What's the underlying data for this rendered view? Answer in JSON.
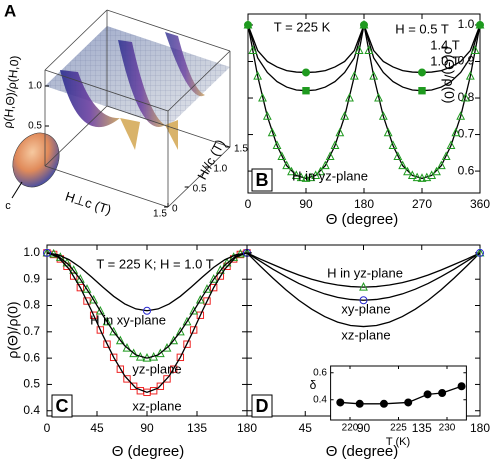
{
  "chart_data": [
    {
      "type": "surface",
      "panel": "A",
      "zlabel": "ρ(H,Θ)/ρ(H,0)",
      "xlabel": "H⊥c (T)",
      "ylabel": "H//c (T)",
      "annotations": [
        "c"
      ],
      "xlim": [
        0,
        1.5
      ],
      "ylim": [
        0,
        1.5
      ],
      "zlim": [
        0,
        1.2
      ],
      "xticks": [
        1.5
      ],
      "yticks": [
        0,
        0.5,
        {
          "value": 1,
          "label": "1.0"
        },
        1.5
      ],
      "zticks": [
        0.5,
        {
          "value": 1,
          "label": "1.0"
        }
      ]
    },
    {
      "type": "line",
      "panel": "B",
      "xlabel": "Θ (degree)",
      "ylabel": "ρ(Θ)/ρ(0)",
      "annotations": [
        "T = 225 K",
        "H in yz-plane"
      ],
      "xlim": [
        0,
        360
      ],
      "ylim": [
        0.54,
        1.03
      ],
      "xticks": [
        0,
        90,
        180,
        270,
        360
      ],
      "yticks": [
        0.6,
        0.7,
        0.8,
        0.9,
        {
          "value": 1,
          "label": "1.0"
        }
      ],
      "series": [
        {
          "color": "#000000",
          "marker": null,
          "x": [
            0,
            15,
            30,
            45,
            60,
            75,
            90,
            105,
            120,
            135,
            150,
            165,
            180,
            195,
            210,
            225,
            240,
            255,
            270,
            285,
            300,
            315,
            330,
            345,
            360
          ],
          "values": [
            1.0,
            0.93,
            0.9,
            0.885,
            0.875,
            0.871,
            0.87,
            0.871,
            0.875,
            0.885,
            0.9,
            0.93,
            1.0,
            0.93,
            0.9,
            0.885,
            0.875,
            0.871,
            0.87,
            0.871,
            0.875,
            0.885,
            0.9,
            0.93,
            1.0
          ]
        },
        {
          "color": "#000000",
          "marker": null,
          "x": [
            0,
            15,
            30,
            45,
            60,
            75,
            90,
            105,
            120,
            135,
            150,
            165,
            180,
            195,
            210,
            225,
            240,
            255,
            270,
            285,
            300,
            315,
            330,
            345,
            360
          ],
          "values": [
            1.0,
            0.91,
            0.87,
            0.845,
            0.83,
            0.822,
            0.82,
            0.822,
            0.83,
            0.845,
            0.87,
            0.91,
            1.0,
            0.91,
            0.87,
            0.845,
            0.83,
            0.822,
            0.82,
            0.822,
            0.83,
            0.845,
            0.87,
            0.91,
            1.0
          ]
        },
        {
          "color": "#000000",
          "marker": null,
          "x": [
            0,
            15,
            30,
            45,
            60,
            75,
            90,
            105,
            120,
            135,
            150,
            165,
            180,
            195,
            210,
            225,
            240,
            255,
            270,
            285,
            300,
            315,
            330,
            345,
            360
          ],
          "values": [
            1.0,
            0.86,
            0.75,
            0.67,
            0.615,
            0.588,
            0.58,
            0.588,
            0.615,
            0.67,
            0.75,
            0.86,
            1.0,
            0.86,
            0.75,
            0.67,
            0.615,
            0.588,
            0.58,
            0.588,
            0.615,
            0.67,
            0.75,
            0.86,
            1.0
          ]
        },
        {
          "name": "H = 0.5 T",
          "color": "#1f9a1f",
          "marker": "circle",
          "filled": true,
          "x": [
            0,
            90,
            180,
            270,
            360
          ],
          "values": [
            1,
            0.87,
            1,
            0.87,
            1
          ]
        },
        {
          "name": "1.4 T",
          "color": "#1f9a1f",
          "marker": "triangle",
          "filled": false,
          "x": [
            0,
            7.5,
            15,
            22.5,
            30,
            37.5,
            45,
            52.5,
            60,
            67.5,
            75,
            82.5,
            90,
            97.5,
            105,
            112.5,
            120,
            127.5,
            135,
            142.5,
            150,
            157.5,
            165,
            172.5,
            180,
            187.5,
            195,
            202.5,
            210,
            217.5,
            225,
            232.5,
            240,
            247.5,
            255,
            262.5,
            270,
            277.5,
            285,
            292.5,
            300,
            307.5,
            315,
            322.5,
            330,
            337.5,
            345,
            352.5,
            360
          ],
          "values": [
            1.0,
            0.93,
            0.86,
            0.8,
            0.75,
            0.705,
            0.67,
            0.64,
            0.615,
            0.598,
            0.588,
            0.582,
            0.58,
            0.582,
            0.588,
            0.598,
            0.615,
            0.64,
            0.67,
            0.705,
            0.75,
            0.8,
            0.86,
            0.93,
            1.0,
            0.93,
            0.86,
            0.8,
            0.75,
            0.705,
            0.67,
            0.64,
            0.615,
            0.598,
            0.588,
            0.582,
            0.58,
            0.582,
            0.588,
            0.598,
            0.615,
            0.64,
            0.67,
            0.705,
            0.75,
            0.8,
            0.86,
            0.93,
            1.0
          ]
        },
        {
          "name": "1.0 T",
          "color": "#1f9a1f",
          "marker": "square",
          "filled": true,
          "x": [
            90,
            270
          ],
          "values": [
            0.82,
            0.82
          ]
        }
      ]
    },
    {
      "type": "line",
      "panel": "C",
      "xlabel": "Θ (degree)",
      "ylabel": "ρ(Θ)/ρ(0)",
      "annotations": [
        "T = 225 K; H = 1.0 T"
      ],
      "xlim": [
        0,
        180
      ],
      "ylim": [
        0.38,
        1.03
      ],
      "xticks": [
        0,
        45,
        90,
        135,
        180
      ],
      "yticks": [
        0.4,
        0.5,
        0.6,
        0.7,
        0.8,
        0.9,
        {
          "value": 1,
          "label": "1.0"
        }
      ],
      "series": [
        {
          "color": "#ee2222",
          "marker": "square",
          "filled": false,
          "x": [
            0,
            6,
            12,
            18,
            24,
            30,
            36,
            42,
            48,
            54,
            60,
            66,
            72,
            78,
            84,
            90,
            96,
            102,
            108,
            114,
            120,
            126,
            132,
            138,
            144,
            150,
            156,
            162,
            168,
            174,
            180
          ],
          "values": [
            1,
            0.994,
            0.977,
            0.949,
            0.912,
            0.868,
            0.817,
            0.763,
            0.707,
            0.653,
            0.603,
            0.558,
            0.521,
            0.493,
            0.476,
            0.47,
            0.476,
            0.493,
            0.521,
            0.558,
            0.603,
            0.653,
            0.707,
            0.763,
            0.817,
            0.868,
            0.912,
            0.949,
            0.977,
            0.994,
            1
          ]
        },
        {
          "color": "#1f9a1f",
          "marker": "triangle",
          "filled": false,
          "x": [
            0,
            6,
            12,
            18,
            24,
            30,
            36,
            42,
            48,
            54,
            60,
            66,
            72,
            78,
            84,
            90,
            96,
            102,
            108,
            114,
            120,
            126,
            132,
            138,
            144,
            150,
            156,
            162,
            168,
            174,
            180
          ],
          "values": [
            1,
            0.996,
            0.983,
            0.962,
            0.934,
            0.9,
            0.862,
            0.821,
            0.779,
            0.738,
            0.7,
            0.666,
            0.638,
            0.617,
            0.604,
            0.6,
            0.604,
            0.617,
            0.638,
            0.666,
            0.7,
            0.738,
            0.779,
            0.821,
            0.862,
            0.9,
            0.934,
            0.962,
            0.983,
            0.996,
            1
          ]
        },
        {
          "name": "H in xy-plane",
          "color": "#000000",
          "marker": null,
          "x": [
            0,
            10,
            20,
            30,
            40,
            50,
            60,
            70,
            80,
            90,
            100,
            110,
            120,
            130,
            140,
            150,
            160,
            170,
            180
          ],
          "values": [
            1,
            0.993,
            0.974,
            0.945,
            0.909,
            0.871,
            0.835,
            0.806,
            0.787,
            0.78,
            0.787,
            0.806,
            0.835,
            0.871,
            0.909,
            0.945,
            0.974,
            0.993,
            1
          ]
        },
        {
          "name": "yz-plane",
          "color": "#000000",
          "marker": null,
          "x": [
            0,
            10,
            20,
            30,
            40,
            50,
            60,
            70,
            80,
            90,
            100,
            110,
            120,
            130,
            140,
            150,
            160,
            170,
            180
          ],
          "values": [
            1,
            0.988,
            0.953,
            0.9,
            0.835,
            0.765,
            0.7,
            0.647,
            0.612,
            0.6,
            0.612,
            0.647,
            0.7,
            0.765,
            0.835,
            0.9,
            0.953,
            0.988,
            1
          ]
        },
        {
          "name": "xz-plane",
          "color": "#000000",
          "marker": null,
          "x": [
            0,
            10,
            20,
            30,
            40,
            50,
            60,
            70,
            80,
            90,
            100,
            110,
            120,
            130,
            140,
            150,
            160,
            170,
            180
          ],
          "values": [
            1,
            0.984,
            0.938,
            0.868,
            0.781,
            0.689,
            0.603,
            0.532,
            0.486,
            0.47,
            0.486,
            0.532,
            0.603,
            0.689,
            0.781,
            0.868,
            0.938,
            0.984,
            1
          ]
        },
        {
          "color": "#2a2ad0",
          "marker": "circle",
          "filled": false,
          "x": [
            0,
            90,
            180
          ],
          "values": [
            1,
            0.78,
            1
          ]
        }
      ]
    },
    {
      "type": "line",
      "panel": "D",
      "xlabel": "Θ (degree)",
      "xlim": [
        0,
        180
      ],
      "ylim": [
        0.38,
        1.03
      ],
      "xticks": [
        45,
        90,
        135,
        180
      ],
      "yticks": [
        0.4,
        0.5,
        0.6,
        0.7,
        0.8,
        0.9,
        1
      ],
      "series": [
        {
          "name": "H in yz-plane",
          "color": "#000000",
          "marker": null,
          "x": [
            0,
            10,
            20,
            30,
            40,
            50,
            60,
            70,
            80,
            90,
            100,
            110,
            120,
            130,
            140,
            150,
            160,
            170,
            180
          ],
          "values": [
            1,
            0.977,
            0.956,
            0.935,
            0.916,
            0.9,
            0.887,
            0.878,
            0.872,
            0.87,
            0.872,
            0.878,
            0.887,
            0.9,
            0.916,
            0.935,
            0.956,
            0.977,
            1
          ]
        },
        {
          "name": "xy-plane",
          "color": "#000000",
          "marker": null,
          "x": [
            0,
            10,
            20,
            30,
            40,
            50,
            60,
            70,
            80,
            90,
            100,
            110,
            120,
            130,
            140,
            150,
            160,
            170,
            180
          ],
          "values": [
            1,
            0.969,
            0.938,
            0.91,
            0.884,
            0.862,
            0.844,
            0.831,
            0.823,
            0.82,
            0.823,
            0.831,
            0.844,
            0.862,
            0.884,
            0.91,
            0.938,
            0.969,
            1
          ]
        },
        {
          "name": "xz-plane",
          "color": "#000000",
          "marker": null,
          "x": [
            0,
            10,
            20,
            30,
            40,
            50,
            60,
            70,
            80,
            90,
            100,
            110,
            120,
            130,
            140,
            150,
            160,
            170,
            180
          ],
          "values": [
            1,
            0.951,
            0.904,
            0.86,
            0.82,
            0.786,
            0.758,
            0.737,
            0.724,
            0.72,
            0.724,
            0.737,
            0.758,
            0.786,
            0.82,
            0.86,
            0.904,
            0.951,
            1
          ]
        },
        {
          "color": "#1f9a1f",
          "marker": "triangle",
          "filled": false,
          "x": [
            90,
            180
          ],
          "values": [
            0.87,
            1
          ]
        },
        {
          "color": "#2a2ad0",
          "marker": "circle",
          "filled": false,
          "x": [
            90,
            180
          ],
          "values": [
            0.82,
            1
          ]
        }
      ]
    },
    {
      "type": "line",
      "xlabel": "T (K)",
      "ylabel": "δ",
      "xlim": [
        218,
        232
      ],
      "ylim": [
        0.25,
        0.65
      ],
      "xticks": [
        220,
        225,
        230
      ],
      "yticks": [
        0.4,
        0.6
      ],
      "series": [
        {
          "color": "#000000",
          "marker": "circle",
          "filled": true,
          "line": true,
          "x": [
            219,
            221,
            223.5,
            226,
            228,
            229.5,
            231.5
          ],
          "values": [
            0.38,
            0.37,
            0.37,
            0.38,
            0.44,
            0.45,
            0.5
          ]
        }
      ]
    }
  ]
}
